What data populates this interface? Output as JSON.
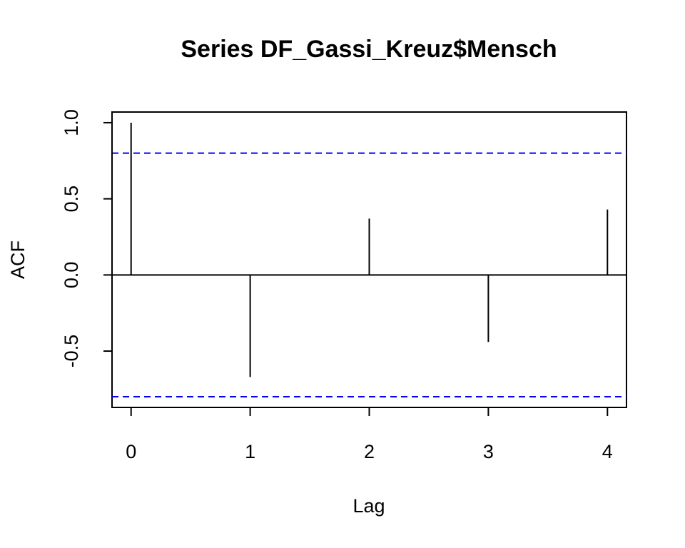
{
  "chart_data": {
    "type": "bar",
    "title": "Series  DF_Gassi_Kreuz$Mensch",
    "xlabel": "Lag",
    "ylabel": "ACF",
    "lags": [
      0,
      1,
      2,
      3,
      4
    ],
    "acf": [
      1.0,
      -0.67,
      0.37,
      -0.44,
      0.43
    ],
    "confidence_band": [
      0.8,
      -0.8
    ],
    "confidence_color": "#0000ff",
    "xticks": [
      0,
      1,
      2,
      3,
      4
    ],
    "xtick_labels": [
      "0",
      "1",
      "2",
      "3",
      "4"
    ],
    "yticks": [
      -0.5,
      0.0,
      0.5,
      1.0
    ],
    "ytick_labels": [
      "-0.5",
      "0.0",
      "0.5",
      "1.0"
    ],
    "xlim": [
      -0.16,
      4.16
    ],
    "ylim": [
      -0.87,
      1.07
    ]
  }
}
